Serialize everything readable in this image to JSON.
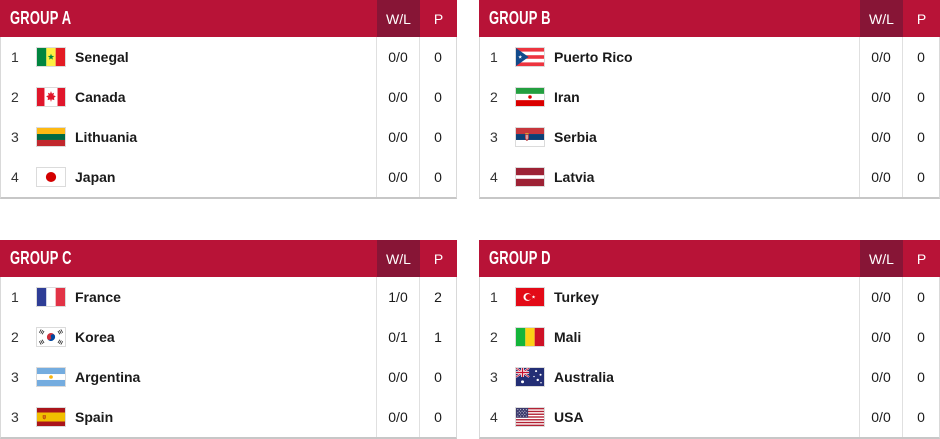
{
  "columns": {
    "wl": "W/L",
    "p": "P"
  },
  "colors": {
    "header_bg": "#b81337",
    "header_dark_bg": "#871536",
    "body_bg": "#ffffff",
    "divider": "#e0e0e0",
    "outer_border": "#d9d9d9",
    "bottom_border": "#c7c7c7",
    "text": "#1a1a1a",
    "header_text": "#ffffff"
  },
  "groups": [
    {
      "title": "GROUP A",
      "rows": [
        {
          "rank": "1",
          "country": "Senegal",
          "flag": "senegal",
          "wl": "0/0",
          "p": "0"
        },
        {
          "rank": "2",
          "country": "Canada",
          "flag": "canada",
          "wl": "0/0",
          "p": "0"
        },
        {
          "rank": "3",
          "country": "Lithuania",
          "flag": "lithuania",
          "wl": "0/0",
          "p": "0"
        },
        {
          "rank": "4",
          "country": "Japan",
          "flag": "japan",
          "wl": "0/0",
          "p": "0"
        }
      ]
    },
    {
      "title": "GROUP B",
      "rows": [
        {
          "rank": "1",
          "country": "Puerto Rico",
          "flag": "puerto-rico",
          "wl": "0/0",
          "p": "0"
        },
        {
          "rank": "2",
          "country": "Iran",
          "flag": "iran",
          "wl": "0/0",
          "p": "0"
        },
        {
          "rank": "3",
          "country": "Serbia",
          "flag": "serbia",
          "wl": "0/0",
          "p": "0"
        },
        {
          "rank": "4",
          "country": "Latvia",
          "flag": "latvia",
          "wl": "0/0",
          "p": "0"
        }
      ]
    },
    {
      "title": "GROUP C",
      "rows": [
        {
          "rank": "1",
          "country": "France",
          "flag": "france",
          "wl": "1/0",
          "p": "2"
        },
        {
          "rank": "2",
          "country": "Korea",
          "flag": "korea",
          "wl": "0/1",
          "p": "1"
        },
        {
          "rank": "3",
          "country": "Argentina",
          "flag": "argentina",
          "wl": "0/0",
          "p": "0"
        },
        {
          "rank": "3",
          "country": "Spain",
          "flag": "spain",
          "wl": "0/0",
          "p": "0"
        }
      ]
    },
    {
      "title": "GROUP D",
      "rows": [
        {
          "rank": "1",
          "country": "Turkey",
          "flag": "turkey",
          "wl": "0/0",
          "p": "0"
        },
        {
          "rank": "2",
          "country": "Mali",
          "flag": "mali",
          "wl": "0/0",
          "p": "0"
        },
        {
          "rank": "3",
          "country": "Australia",
          "flag": "australia",
          "wl": "0/0",
          "p": "0"
        },
        {
          "rank": "4",
          "country": "USA",
          "flag": "usa",
          "wl": "0/0",
          "p": "0"
        }
      ]
    }
  ]
}
